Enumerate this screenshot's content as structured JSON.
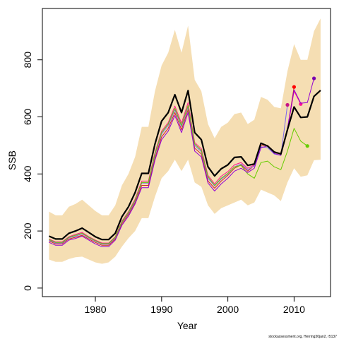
{
  "chart_data": {
    "type": "line",
    "xlabel": "Year",
    "ylabel": "SSB",
    "xlim": [
      1972,
      2015.5
    ],
    "ylim": [
      -30,
      980
    ],
    "x_ticks": [
      1980,
      1990,
      2000,
      2010
    ],
    "y_ticks": [
      0,
      200,
      400,
      600,
      800
    ],
    "grid": false,
    "legend": "none",
    "footer": "stockassessment.org, Herring30jan2, r5137",
    "band": {
      "color": "#f5deb3",
      "x": [
        1973,
        1974,
        1975,
        1976,
        1977,
        1978,
        1979,
        1980,
        1981,
        1982,
        1983,
        1984,
        1985,
        1986,
        1987,
        1988,
        1989,
        1990,
        1991,
        1992,
        1993,
        1994,
        1995,
        1996,
        1997,
        1998,
        1999,
        2000,
        2001,
        2002,
        2003,
        2004,
        2005,
        2006,
        2007,
        2008,
        2009,
        2010,
        2011,
        2012,
        2013,
        2014
      ],
      "lower": [
        100,
        92,
        92,
        102,
        108,
        110,
        100,
        90,
        85,
        90,
        110,
        145,
        175,
        200,
        245,
        245,
        320,
        385,
        410,
        450,
        410,
        450,
        370,
        355,
        290,
        260,
        280,
        290,
        300,
        310,
        290,
        300,
        345,
        335,
        325,
        305,
        370,
        420,
        390,
        395,
        448,
        450
      ],
      "upper": [
        268,
        255,
        255,
        285,
        295,
        310,
        290,
        270,
        255,
        255,
        290,
        360,
        400,
        460,
        565,
        565,
        690,
        780,
        825,
        905,
        825,
        920,
        730,
        690,
        575,
        525,
        565,
        580,
        610,
        615,
        575,
        590,
        670,
        660,
        635,
        630,
        760,
        855,
        800,
        800,
        900,
        945
      ]
    },
    "series": [
      {
        "color": "#000000",
        "width": 2.2,
        "x": [
          1973,
          1974,
          1975,
          1976,
          1977,
          1978,
          1979,
          1980,
          1981,
          1982,
          1983,
          1984,
          1985,
          1986,
          1987,
          1988,
          1989,
          1990,
          1991,
          1992,
          1993,
          1994,
          1995,
          1996,
          1997,
          1998,
          1999,
          2000,
          2001,
          2002,
          2003,
          2004,
          2005,
          2006,
          2007,
          2008,
          2009,
          2010,
          2011,
          2012,
          2013,
          2014
        ],
        "values": [
          182,
          172,
          172,
          192,
          200,
          210,
          195,
          180,
          170,
          170,
          192,
          250,
          285,
          335,
          402,
          402,
          505,
          585,
          615,
          678,
          615,
          692,
          545,
          520,
          425,
          393,
          418,
          432,
          458,
          460,
          430,
          435,
          508,
          498,
          477,
          470,
          555,
          635,
          598,
          600,
          672,
          693
        ]
      },
      {
        "color": "#cd2626",
        "width": 1,
        "x": [
          1973,
          1974,
          1975,
          1976,
          1977,
          1978,
          1979,
          1980,
          1981,
          1982,
          1983,
          1984,
          1985,
          1986,
          1987,
          1988,
          1989,
          1990,
          1991,
          1992,
          1993,
          1994,
          1995,
          1996,
          1997,
          1998,
          1999,
          2000,
          2001,
          2002,
          2003,
          2004,
          2005,
          2006,
          2007,
          2008,
          2009,
          2010
        ],
        "values": [
          165,
          155,
          155,
          172,
          178,
          185,
          172,
          160,
          150,
          150,
          172,
          225,
          258,
          300,
          360,
          360,
          455,
          530,
          560,
          615,
          555,
          625,
          490,
          470,
          375,
          350,
          375,
          395,
          420,
          432,
          410,
          430,
          500,
          500,
          475,
          470,
          555,
          705
        ],
        "end_marker": {
          "x": 2010,
          "value": 705,
          "color": "#ff0000"
        }
      },
      {
        "color": "#ff1493",
        "width": 1,
        "x": [
          1973,
          1974,
          1975,
          1976,
          1977,
          1978,
          1979,
          1980,
          1981,
          1982,
          1983,
          1984,
          1985,
          1986,
          1987,
          1988,
          1989,
          1990,
          1991,
          1992,
          1993,
          1994,
          1995,
          1996,
          1997,
          1998,
          1999,
          2000,
          2001,
          2002,
          2003,
          2004,
          2005,
          2006,
          2007,
          2008,
          2009,
          2010,
          2011
        ],
        "values": [
          172,
          162,
          162,
          180,
          188,
          195,
          180,
          168,
          158,
          158,
          180,
          235,
          268,
          312,
          375,
          375,
          475,
          550,
          580,
          638,
          578,
          650,
          510,
          488,
          395,
          365,
          392,
          408,
          432,
          440,
          420,
          432,
          505,
          500,
          478,
          472,
          555,
          690,
          645
        ],
        "end_marker": {
          "x": 2011,
          "value": 645,
          "color": "#ff1493"
        }
      },
      {
        "color": "#7b68ee",
        "width": 1,
        "x": [
          1973,
          1974,
          1975,
          1976,
          1977,
          1978,
          1979,
          1980,
          1981,
          1982,
          1983,
          1984,
          1985,
          1986,
          1987,
          1988,
          1989,
          1990,
          1991,
          1992,
          1993,
          1994,
          1995,
          1996,
          1997,
          1998,
          1999,
          2000,
          2001,
          2002,
          2003,
          2004,
          2005,
          2006,
          2007,
          2008,
          2009
        ],
        "values": [
          168,
          158,
          158,
          176,
          182,
          190,
          176,
          164,
          154,
          154,
          176,
          230,
          262,
          305,
          368,
          368,
          465,
          540,
          570,
          625,
          565,
          635,
          500,
          478,
          385,
          358,
          382,
          400,
          425,
          435,
          415,
          428,
          495,
          492,
          470,
          465,
          642
        ],
        "end_marker": {
          "x": 2009,
          "value": 642,
          "color": "#c71585"
        }
      },
      {
        "color": "#66cd00",
        "width": 1,
        "x": [
          1973,
          1974,
          1975,
          1976,
          1977,
          1978,
          1979,
          1980,
          1981,
          1982,
          1983,
          1984,
          1985,
          1986,
          1987,
          1988,
          1989,
          1990,
          1991,
          1992,
          1993,
          1994,
          1995,
          1996,
          1997,
          1998,
          1999,
          2000,
          2001,
          2002,
          2003,
          2004,
          2005,
          2006,
          2007,
          2008,
          2009,
          2010,
          2011,
          2012
        ],
        "values": [
          170,
          160,
          160,
          178,
          185,
          192,
          178,
          166,
          156,
          156,
          178,
          232,
          265,
          308,
          370,
          370,
          470,
          545,
          575,
          630,
          570,
          640,
          505,
          482,
          390,
          360,
          385,
          402,
          425,
          430,
          400,
          385,
          440,
          445,
          425,
          415,
          480,
          560,
          515,
          498
        ],
        "end_marker": {
          "x": 2012,
          "value": 498,
          "color": "#66cd00"
        }
      },
      {
        "color": "#9400d3",
        "width": 1,
        "x": [
          1973,
          1974,
          1975,
          1976,
          1977,
          1978,
          1979,
          1980,
          1981,
          1982,
          1983,
          1984,
          1985,
          1986,
          1987,
          1988,
          1989,
          1990,
          1991,
          1992,
          1993,
          1994,
          1995,
          1996,
          1997,
          1998,
          1999,
          2000,
          2001,
          2002,
          2003,
          2004,
          2005,
          2006,
          2007,
          2008,
          2009,
          2010,
          2011,
          2012,
          2013
        ],
        "values": [
          160,
          150,
          150,
          168,
          174,
          182,
          168,
          155,
          145,
          145,
          168,
          220,
          252,
          295,
          352,
          352,
          448,
          520,
          550,
          605,
          545,
          615,
          480,
          460,
          368,
          340,
          365,
          385,
          410,
          420,
          405,
          420,
          492,
          498,
          472,
          465,
          560,
          695,
          648,
          650,
          735
        ],
        "end_marker": {
          "x": 2013,
          "value": 735,
          "color": "#7a00b0"
        }
      }
    ]
  }
}
